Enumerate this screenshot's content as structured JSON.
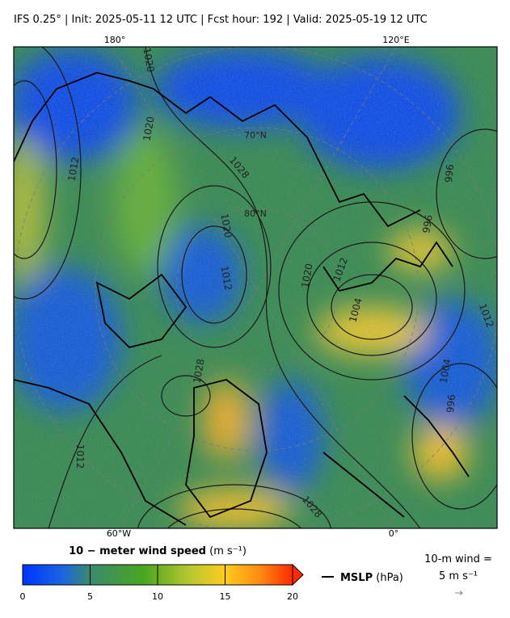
{
  "header": {
    "title": "IFS 0.25°  |  Init: 2025-05-11 12 UTC  |  Fcst hour: 192  |  Valid: 2025-05-19 12 UTC"
  },
  "map": {
    "lon_labels": [
      "180°",
      "120°E",
      "60°W",
      "0°"
    ],
    "lat_labels": [
      "70°N",
      "80°N"
    ],
    "contour_labels": [
      "1020",
      "1020",
      "1012",
      "1028",
      "1020",
      "1012",
      "1020",
      "1012",
      "1004",
      "996",
      "996",
      "1012",
      "1004",
      "996",
      "1028",
      "1012",
      "1028"
    ]
  },
  "colorbar": {
    "label_bold": "10 − meter wind speed",
    "label_unit": "(m s⁻¹)",
    "range": [
      0,
      20
    ],
    "ticks": [
      0,
      5,
      10,
      15,
      20
    ]
  },
  "legend": {
    "mslp_bold": "MSLP",
    "mslp_unit": "(hPa)",
    "wind_line1": "10-m wind =",
    "wind_line2": "5 m s⁻¹"
  }
}
